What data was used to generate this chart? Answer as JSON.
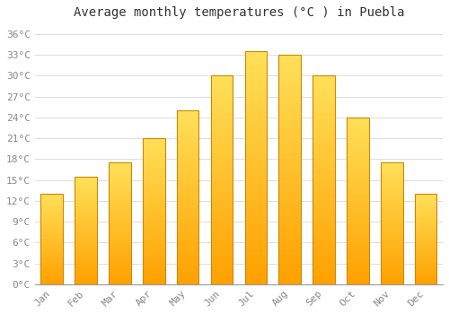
{
  "title": "Average monthly temperatures (°C ) in Puebla",
  "months": [
    "Jan",
    "Feb",
    "Mar",
    "Apr",
    "May",
    "Jun",
    "Jul",
    "Aug",
    "Sep",
    "Oct",
    "Nov",
    "Dec"
  ],
  "values": [
    13,
    15.5,
    17.5,
    21,
    25,
    30,
    33.5,
    33,
    30,
    24,
    17.5,
    13
  ],
  "bar_color_top": "#FFD966",
  "bar_color_bottom": "#FFA500",
  "bar_edge_color": "#CC8800",
  "background_color": "#FFFFFF",
  "grid_color": "#DDDDDD",
  "yticks": [
    0,
    3,
    6,
    9,
    12,
    15,
    18,
    21,
    24,
    27,
    30,
    33,
    36
  ],
  "ylim": [
    0,
    37.5
  ],
  "title_fontsize": 10,
  "tick_fontsize": 8,
  "tick_color": "#888888",
  "font_family": "monospace",
  "bar_width": 0.65
}
